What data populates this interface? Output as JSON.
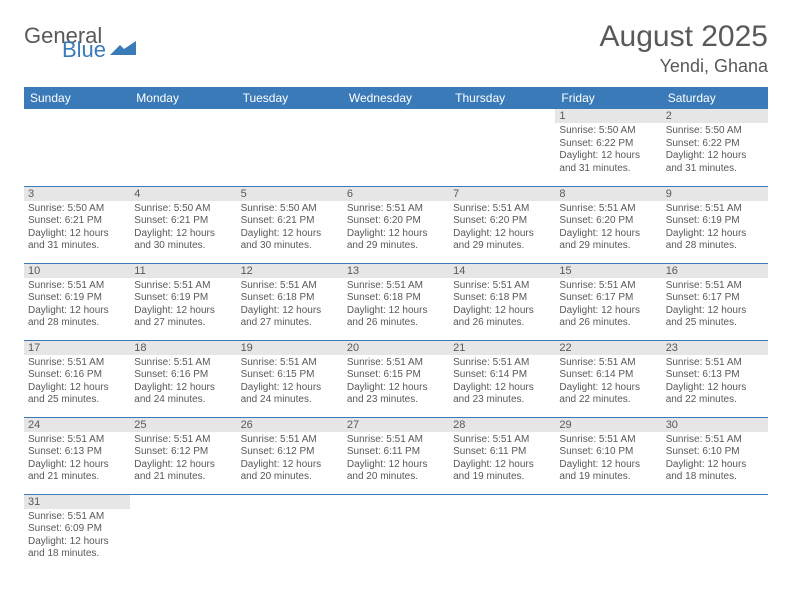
{
  "logo": {
    "general": "General",
    "blue": "Blue"
  },
  "title": "August 2025",
  "location": "Yendi, Ghana",
  "colors": {
    "header_bg": "#3a7ab8",
    "header_fg": "#ffffff",
    "daynum_bg": "#e6e6e6",
    "text": "#595959",
    "page_bg": "#ffffff",
    "row_divider": "#3a7ab8"
  },
  "weekdays": [
    "Sunday",
    "Monday",
    "Tuesday",
    "Wednesday",
    "Thursday",
    "Friday",
    "Saturday"
  ],
  "weeks": [
    [
      null,
      null,
      null,
      null,
      null,
      {
        "n": "1",
        "sr": "Sunrise: 5:50 AM",
        "ss": "Sunset: 6:22 PM",
        "d1": "Daylight: 12 hours",
        "d2": "and 31 minutes."
      },
      {
        "n": "2",
        "sr": "Sunrise: 5:50 AM",
        "ss": "Sunset: 6:22 PM",
        "d1": "Daylight: 12 hours",
        "d2": "and 31 minutes."
      }
    ],
    [
      {
        "n": "3",
        "sr": "Sunrise: 5:50 AM",
        "ss": "Sunset: 6:21 PM",
        "d1": "Daylight: 12 hours",
        "d2": "and 31 minutes."
      },
      {
        "n": "4",
        "sr": "Sunrise: 5:50 AM",
        "ss": "Sunset: 6:21 PM",
        "d1": "Daylight: 12 hours",
        "d2": "and 30 minutes."
      },
      {
        "n": "5",
        "sr": "Sunrise: 5:50 AM",
        "ss": "Sunset: 6:21 PM",
        "d1": "Daylight: 12 hours",
        "d2": "and 30 minutes."
      },
      {
        "n": "6",
        "sr": "Sunrise: 5:51 AM",
        "ss": "Sunset: 6:20 PM",
        "d1": "Daylight: 12 hours",
        "d2": "and 29 minutes."
      },
      {
        "n": "7",
        "sr": "Sunrise: 5:51 AM",
        "ss": "Sunset: 6:20 PM",
        "d1": "Daylight: 12 hours",
        "d2": "and 29 minutes."
      },
      {
        "n": "8",
        "sr": "Sunrise: 5:51 AM",
        "ss": "Sunset: 6:20 PM",
        "d1": "Daylight: 12 hours",
        "d2": "and 29 minutes."
      },
      {
        "n": "9",
        "sr": "Sunrise: 5:51 AM",
        "ss": "Sunset: 6:19 PM",
        "d1": "Daylight: 12 hours",
        "d2": "and 28 minutes."
      }
    ],
    [
      {
        "n": "10",
        "sr": "Sunrise: 5:51 AM",
        "ss": "Sunset: 6:19 PM",
        "d1": "Daylight: 12 hours",
        "d2": "and 28 minutes."
      },
      {
        "n": "11",
        "sr": "Sunrise: 5:51 AM",
        "ss": "Sunset: 6:19 PM",
        "d1": "Daylight: 12 hours",
        "d2": "and 27 minutes."
      },
      {
        "n": "12",
        "sr": "Sunrise: 5:51 AM",
        "ss": "Sunset: 6:18 PM",
        "d1": "Daylight: 12 hours",
        "d2": "and 27 minutes."
      },
      {
        "n": "13",
        "sr": "Sunrise: 5:51 AM",
        "ss": "Sunset: 6:18 PM",
        "d1": "Daylight: 12 hours",
        "d2": "and 26 minutes."
      },
      {
        "n": "14",
        "sr": "Sunrise: 5:51 AM",
        "ss": "Sunset: 6:18 PM",
        "d1": "Daylight: 12 hours",
        "d2": "and 26 minutes."
      },
      {
        "n": "15",
        "sr": "Sunrise: 5:51 AM",
        "ss": "Sunset: 6:17 PM",
        "d1": "Daylight: 12 hours",
        "d2": "and 26 minutes."
      },
      {
        "n": "16",
        "sr": "Sunrise: 5:51 AM",
        "ss": "Sunset: 6:17 PM",
        "d1": "Daylight: 12 hours",
        "d2": "and 25 minutes."
      }
    ],
    [
      {
        "n": "17",
        "sr": "Sunrise: 5:51 AM",
        "ss": "Sunset: 6:16 PM",
        "d1": "Daylight: 12 hours",
        "d2": "and 25 minutes."
      },
      {
        "n": "18",
        "sr": "Sunrise: 5:51 AM",
        "ss": "Sunset: 6:16 PM",
        "d1": "Daylight: 12 hours",
        "d2": "and 24 minutes."
      },
      {
        "n": "19",
        "sr": "Sunrise: 5:51 AM",
        "ss": "Sunset: 6:15 PM",
        "d1": "Daylight: 12 hours",
        "d2": "and 24 minutes."
      },
      {
        "n": "20",
        "sr": "Sunrise: 5:51 AM",
        "ss": "Sunset: 6:15 PM",
        "d1": "Daylight: 12 hours",
        "d2": "and 23 minutes."
      },
      {
        "n": "21",
        "sr": "Sunrise: 5:51 AM",
        "ss": "Sunset: 6:14 PM",
        "d1": "Daylight: 12 hours",
        "d2": "and 23 minutes."
      },
      {
        "n": "22",
        "sr": "Sunrise: 5:51 AM",
        "ss": "Sunset: 6:14 PM",
        "d1": "Daylight: 12 hours",
        "d2": "and 22 minutes."
      },
      {
        "n": "23",
        "sr": "Sunrise: 5:51 AM",
        "ss": "Sunset: 6:13 PM",
        "d1": "Daylight: 12 hours",
        "d2": "and 22 minutes."
      }
    ],
    [
      {
        "n": "24",
        "sr": "Sunrise: 5:51 AM",
        "ss": "Sunset: 6:13 PM",
        "d1": "Daylight: 12 hours",
        "d2": "and 21 minutes."
      },
      {
        "n": "25",
        "sr": "Sunrise: 5:51 AM",
        "ss": "Sunset: 6:12 PM",
        "d1": "Daylight: 12 hours",
        "d2": "and 21 minutes."
      },
      {
        "n": "26",
        "sr": "Sunrise: 5:51 AM",
        "ss": "Sunset: 6:12 PM",
        "d1": "Daylight: 12 hours",
        "d2": "and 20 minutes."
      },
      {
        "n": "27",
        "sr": "Sunrise: 5:51 AM",
        "ss": "Sunset: 6:11 PM",
        "d1": "Daylight: 12 hours",
        "d2": "and 20 minutes."
      },
      {
        "n": "28",
        "sr": "Sunrise: 5:51 AM",
        "ss": "Sunset: 6:11 PM",
        "d1": "Daylight: 12 hours",
        "d2": "and 19 minutes."
      },
      {
        "n": "29",
        "sr": "Sunrise: 5:51 AM",
        "ss": "Sunset: 6:10 PM",
        "d1": "Daylight: 12 hours",
        "d2": "and 19 minutes."
      },
      {
        "n": "30",
        "sr": "Sunrise: 5:51 AM",
        "ss": "Sunset: 6:10 PM",
        "d1": "Daylight: 12 hours",
        "d2": "and 18 minutes."
      }
    ],
    [
      {
        "n": "31",
        "sr": "Sunrise: 5:51 AM",
        "ss": "Sunset: 6:09 PM",
        "d1": "Daylight: 12 hours",
        "d2": "and 18 minutes."
      },
      null,
      null,
      null,
      null,
      null,
      null
    ]
  ]
}
